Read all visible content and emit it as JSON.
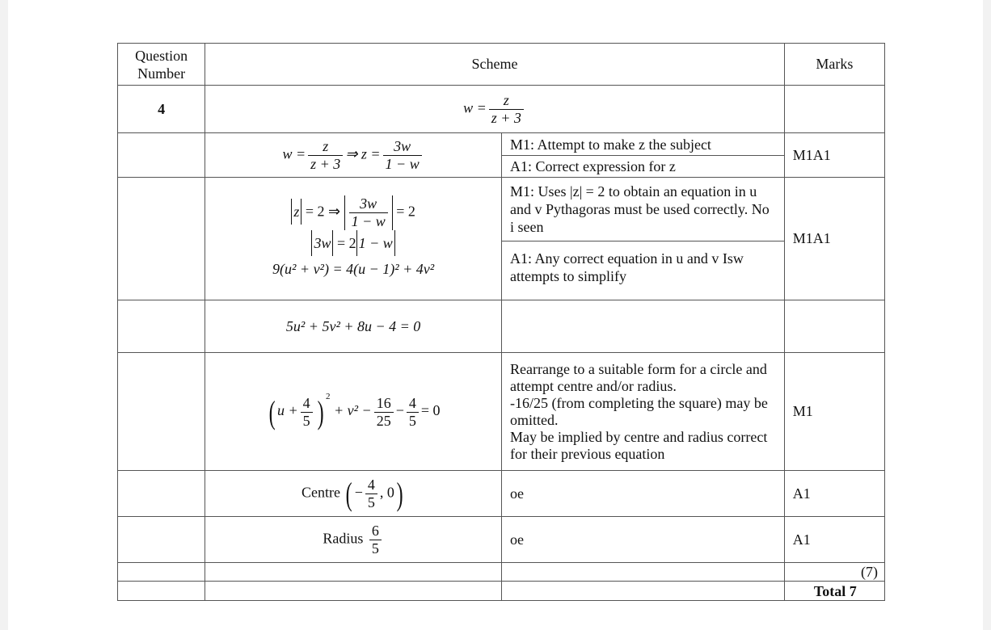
{
  "header": {
    "question": "Question Number",
    "scheme": "Scheme",
    "marks": "Marks"
  },
  "question_number": "4",
  "rows": [
    {
      "math": {
        "lhs": "w =",
        "num": "z",
        "den": "z + 3"
      }
    },
    {
      "math": {
        "a": "w =",
        "num1": "z",
        "den1": "z + 3",
        "b": "⇒ z =",
        "num2": "3w",
        "den2": "1 − w"
      },
      "notes": [
        "M1: Attempt to make z the subject",
        "A1: Correct expression for z"
      ],
      "marks": "M1A1"
    },
    {
      "math": {
        "l1a": "z",
        "l1b": "= 2 ⇒",
        "l1num": "3w",
        "l1den": "1 − w",
        "l1c": "= 2",
        "l2a": "3w",
        "l2b": "= 2",
        "l2c": "1 − w",
        "l3": "9(u² + v²) = 4(u − 1)² + 4v²"
      },
      "notes": [
        "M1: Uses |z| = 2 to obtain an equation in u and v Pythagoras must be used correctly. No i seen",
        "A1: Any correct equation in u and v Isw attempts to simplify"
      ],
      "marks": "M1A1"
    },
    {
      "math": "5u² + 5v² + 8u − 4 = 0"
    },
    {
      "math": {
        "a": "u +",
        "num1": "4",
        "den1": "5",
        "sq": "2",
        "b": "+ v² −",
        "num2": "16",
        "den2": "25",
        "c": "−",
        "num3": "4",
        "den3": "5",
        "d": "= 0"
      },
      "notes": [
        "Rearrange to a suitable form for a circle and attempt centre and/or radius.",
        "-16/25 (from completing the square) may be omitted.",
        "May be implied by centre and radius correct for their previous equation"
      ],
      "marks": "M1"
    },
    {
      "math": {
        "label": "Centre",
        "sign": "−",
        "num": "4",
        "den": "5",
        "rest": ", 0"
      },
      "notes": [
        "oe"
      ],
      "marks": "A1"
    },
    {
      "math": {
        "label": "Radius",
        "num": "6",
        "den": "5"
      },
      "notes": [
        "oe"
      ],
      "marks": "A1"
    }
  ],
  "subtotal": "(7)",
  "total": "Total 7"
}
